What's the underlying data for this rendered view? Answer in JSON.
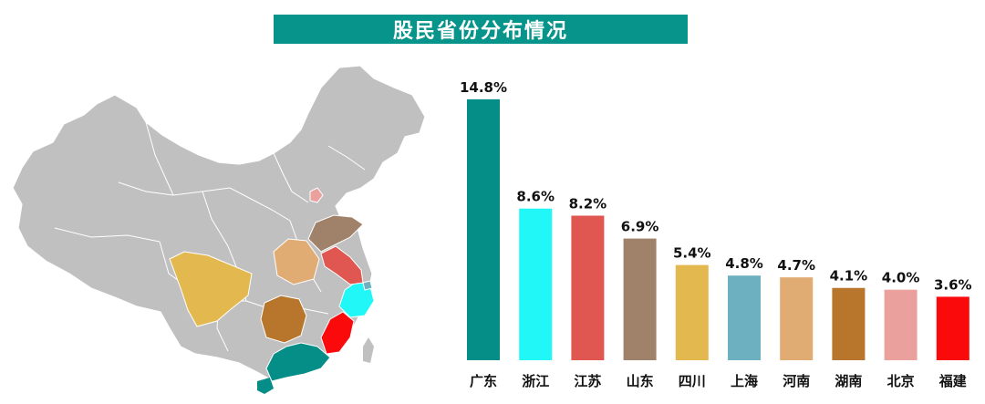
{
  "title": "股民省份分布情况",
  "chart_data": {
    "type": "bar",
    "title": "股民省份分布情况",
    "categories": [
      "广东",
      "浙江",
      "江苏",
      "山东",
      "四川",
      "上海",
      "河南",
      "湖南",
      "北京",
      "福建"
    ],
    "values": [
      14.8,
      8.6,
      8.2,
      6.9,
      5.4,
      4.8,
      4.7,
      4.1,
      4.0,
      3.6
    ],
    "value_labels": [
      "14.8%",
      "8.6%",
      "8.2%",
      "6.9%",
      "5.4%",
      "4.8%",
      "4.7%",
      "4.1%",
      "4.0%",
      "3.6%"
    ],
    "colors": [
      "#058e87",
      "#22f7f7",
      "#df5750",
      "#a0826a",
      "#e3b84f",
      "#6db0bf",
      "#e1ac74",
      "#b8762c",
      "#eaa19d",
      "#fa0a0b"
    ],
    "ylim": [
      0,
      15
    ],
    "grid": false,
    "legend": "none"
  },
  "map": {
    "base_color": "#c0c0c0",
    "border_color": "#ffffff",
    "highlight_provinces": [
      "广东",
      "浙江",
      "江苏",
      "山东",
      "四川",
      "上海",
      "河南",
      "湖南",
      "北京",
      "福建"
    ]
  }
}
